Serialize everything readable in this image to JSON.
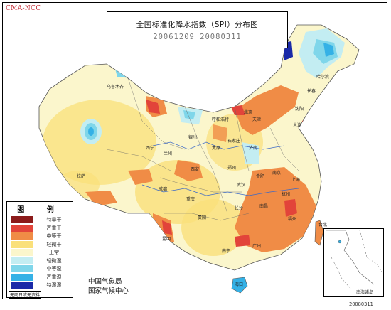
{
  "corner_label": "CMA-NCC",
  "title": "全国标准化降水指数（SPI）分布图",
  "date_range": "20061209  20080311",
  "legend": {
    "title": "图 例",
    "items": [
      {
        "label": "特旱干",
        "color": "#8b1a1a"
      },
      {
        "label": "严重干",
        "color": "#e2443a"
      },
      {
        "label": "中等干",
        "color": "#f08c46"
      },
      {
        "label": "轻微干",
        "color": "#fae07a"
      },
      {
        "label": "正常",
        "color": "#fbf6cc"
      },
      {
        "label": "轻微湿",
        "color": "#c3edf2"
      },
      {
        "label": "中等湿",
        "color": "#7fd6ea"
      },
      {
        "label": "严重湿",
        "color": "#34b1e6"
      },
      {
        "label": "特湿湿",
        "color": "#1a2aa8"
      }
    ],
    "note": "无雨日或无资料"
  },
  "agency": [
    "中国气象局",
    "国家气候中心"
  ],
  "inset_label": "南海诸岛",
  "product_code": "20080311",
  "cities": [
    {
      "name": "乌鲁木齐"
    },
    {
      "name": "拉萨"
    },
    {
      "name": "西宁"
    },
    {
      "name": "兰州"
    },
    {
      "name": "银川"
    },
    {
      "name": "呼和浩特"
    },
    {
      "name": "北京"
    },
    {
      "name": "天津"
    },
    {
      "name": "石家庄"
    },
    {
      "name": "太原"
    },
    {
      "name": "济南"
    },
    {
      "name": "郑州"
    },
    {
      "name": "西安"
    },
    {
      "name": "成都"
    },
    {
      "name": "重庆"
    },
    {
      "name": "武汉"
    },
    {
      "name": "合肥"
    },
    {
      "name": "南京"
    },
    {
      "name": "上海"
    },
    {
      "name": "杭州"
    },
    {
      "name": "长沙"
    },
    {
      "name": "南昌"
    },
    {
      "name": "福州"
    },
    {
      "name": "贵阳"
    },
    {
      "name": "昆明"
    },
    {
      "name": "南宁"
    },
    {
      "name": "广州"
    },
    {
      "name": "海口"
    },
    {
      "name": "台北"
    },
    {
      "name": "沈阳"
    },
    {
      "name": "长春"
    },
    {
      "name": "哈尔滨"
    },
    {
      "name": "大连"
    }
  ]
}
